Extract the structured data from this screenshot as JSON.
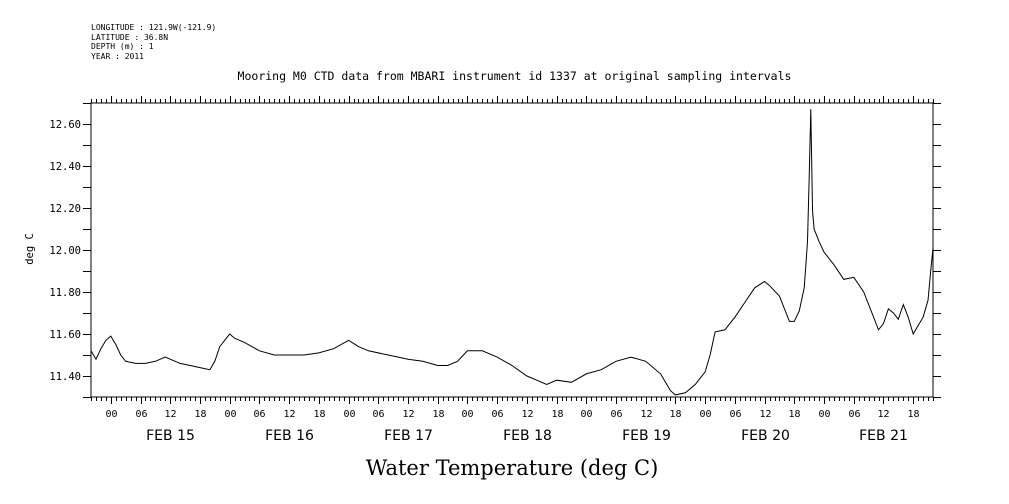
{
  "header": {
    "longitude": "LONGITUDE : 121.9W(-121.9)",
    "latitude": "LATITUDE : 36.8N",
    "depth": "DEPTH (m) : 1",
    "year": "YEAR : 2011"
  },
  "chart_data": {
    "type": "line",
    "title": "Mooring M0 CTD data from MBARI instrument id 1337 at original sampling intervals",
    "xlabel": "Water Temperature (deg C)",
    "ylabel": "deg C",
    "ylim": [
      11.3,
      12.7
    ],
    "y_ticks": [
      11.4,
      11.6,
      11.8,
      12.0,
      12.2,
      12.4,
      12.6
    ],
    "y_tick_labels": [
      "11.40",
      "11.60",
      "11.80",
      "12.00",
      "12.20",
      "12.40",
      "12.60"
    ],
    "x_range_hours": [
      "2011-02-14 20:00",
      "2011-02-21 22:00"
    ],
    "hour_tick_labels": [
      "00",
      "06",
      "12",
      "18"
    ],
    "day_labels": [
      "FEB 15",
      "FEB 16",
      "FEB 17",
      "FEB 18",
      "FEB 19",
      "FEB 20",
      "FEB 21"
    ],
    "series": [
      {
        "x": [
          "2011-02-14 20:00",
          "2011-02-14 21:00",
          "2011-02-14 22:00",
          "2011-02-14 23:00",
          "2011-02-15 00:00",
          "2011-02-15 01:00",
          "2011-02-15 02:00",
          "2011-02-15 03:00",
          "2011-02-15 05:00",
          "2011-02-15 07:00",
          "2011-02-15 09:00",
          "2011-02-15 11:00",
          "2011-02-15 12:00",
          "2011-02-15 14:00",
          "2011-02-15 16:00",
          "2011-02-15 18:00",
          "2011-02-15 20:00",
          "2011-02-15 21:00",
          "2011-02-15 22:00",
          "2011-02-15 23:00",
          "2011-02-16 00:00",
          "2011-02-16 01:00",
          "2011-02-16 02:00",
          "2011-02-16 03:00",
          "2011-02-16 06:00",
          "2011-02-16 09:00",
          "2011-02-16 12:00",
          "2011-02-16 15:00",
          "2011-02-16 18:00",
          "2011-02-16 21:00",
          "2011-02-17 00:00",
          "2011-02-17 02:00",
          "2011-02-17 04:00",
          "2011-02-17 08:00",
          "2011-02-17 12:00",
          "2011-02-17 15:00",
          "2011-02-17 18:00",
          "2011-02-17 20:00",
          "2011-02-17 22:00",
          "2011-02-18 00:00",
          "2011-02-18 03:00",
          "2011-02-18 06:00",
          "2011-02-18 09:00",
          "2011-02-18 12:00",
          "2011-02-18 14:00",
          "2011-02-18 16:00",
          "2011-02-18 18:00",
          "2011-02-18 21:00",
          "2011-02-19 00:00",
          "2011-02-19 03:00",
          "2011-02-19 06:00",
          "2011-02-19 09:00",
          "2011-02-19 12:00",
          "2011-02-19 15:00",
          "2011-02-19 16:00",
          "2011-02-19 17:00",
          "2011-02-19 18:00",
          "2011-02-19 20:00",
          "2011-02-19 22:00",
          "2011-02-20 00:00",
          "2011-02-20 01:00",
          "2011-02-20 02:00",
          "2011-02-20 04:00",
          "2011-02-20 06:00",
          "2011-02-20 08:00",
          "2011-02-20 10:00",
          "2011-02-20 12:00",
          "2011-02-20 13:00",
          "2011-02-20 15:00",
          "2011-02-20 17:00",
          "2011-02-20 18:00",
          "2011-02-20 19:00",
          "2011-02-20 20:00",
          "2011-02-20 20:20",
          "2011-02-20 20:40",
          "2011-02-20 21:00",
          "2011-02-20 21:20",
          "2011-02-20 21:40",
          "2011-02-20 22:00",
          "2011-02-20 22:30",
          "2011-02-20 23:00",
          "2011-02-21 00:00",
          "2011-02-21 02:00",
          "2011-02-21 04:00",
          "2011-02-21 06:00",
          "2011-02-21 08:00",
          "2011-02-21 10:00",
          "2011-02-21 11:00",
          "2011-02-21 12:00",
          "2011-02-21 13:00",
          "2011-02-21 14:00",
          "2011-02-21 15:00",
          "2011-02-21 16:00",
          "2011-02-21 17:00",
          "2011-02-21 18:00",
          "2011-02-21 19:00",
          "2011-02-21 20:00",
          "2011-02-21 21:00",
          "2011-02-21 21:30",
          "2011-02-21 22:00"
        ],
        "values": [
          11.52,
          11.48,
          11.53,
          11.57,
          11.59,
          11.55,
          11.5,
          11.47,
          11.46,
          11.46,
          11.47,
          11.49,
          11.48,
          11.46,
          11.45,
          11.44,
          11.43,
          11.47,
          11.54,
          11.57,
          11.6,
          11.58,
          11.57,
          11.56,
          11.52,
          11.5,
          11.5,
          11.5,
          11.51,
          11.53,
          11.57,
          11.54,
          11.52,
          11.5,
          11.48,
          11.47,
          11.45,
          11.45,
          11.47,
          11.52,
          11.52,
          11.49,
          11.45,
          11.4,
          11.38,
          11.36,
          11.38,
          11.37,
          11.41,
          11.43,
          11.47,
          11.49,
          11.47,
          11.41,
          11.37,
          11.33,
          11.31,
          11.32,
          11.36,
          11.42,
          11.5,
          11.61,
          11.62,
          11.68,
          11.75,
          11.82,
          11.85,
          11.83,
          11.78,
          11.66,
          11.66,
          11.71,
          11.82,
          11.93,
          12.04,
          12.35,
          12.67,
          12.19,
          12.1,
          12.07,
          12.04,
          11.99,
          11.93,
          11.86,
          11.87,
          11.8,
          11.68,
          11.62,
          11.65,
          11.72,
          11.7,
          11.67,
          11.74,
          11.68,
          11.6,
          11.64,
          11.68,
          11.76,
          11.89,
          12.01
        ]
      }
    ],
    "grid": false,
    "legend": "none"
  }
}
